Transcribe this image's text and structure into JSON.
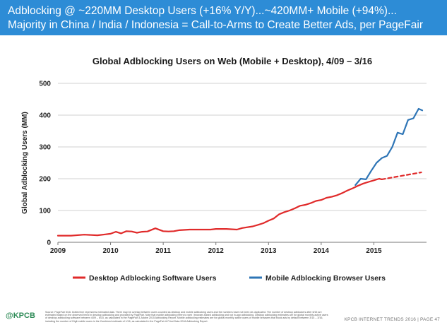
{
  "header": {
    "line1": "Adblocking @ ~220MM Desktop Users (+16% Y/Y)...~420MM+ Mobile (+94%)...",
    "line2": "Majority in China / India / Indonesia = Call-to-Arms to Create Better Ads, per PageFair"
  },
  "chart_data": {
    "type": "line",
    "title": "Global Adblocking Users on Web (Mobile + Desktop), 4/09 – 3/16",
    "xlabel": "",
    "ylabel": "Global Adblocking Users (MM)",
    "xlim": [
      2009,
      2016
    ],
    "ylim": [
      0,
      500
    ],
    "yticks": [
      0,
      100,
      200,
      300,
      400,
      500
    ],
    "xticks": [
      2009,
      2010,
      2011,
      2012,
      2013,
      2014,
      2015
    ],
    "grid": true,
    "legend_position": "bottom",
    "series": [
      {
        "name": "Desktop Adblocking Software Users",
        "color": "#e02a2a",
        "style": "solid",
        "x": [
          2009.0,
          2009.25,
          2009.5,
          2009.75,
          2009.9,
          2010.0,
          2010.1,
          2010.2,
          2010.3,
          2010.4,
          2010.5,
          2010.6,
          2010.7,
          2010.85,
          2011.0,
          2011.1,
          2011.2,
          2011.3,
          2011.5,
          2011.7,
          2011.9,
          2012.0,
          2012.2,
          2012.4,
          2012.5,
          2012.7,
          2012.8,
          2012.9,
          2013.0,
          2013.1,
          2013.2,
          2013.3,
          2013.4,
          2013.5,
          2013.6,
          2013.7,
          2013.8,
          2013.9,
          2014.0,
          2014.1,
          2014.2,
          2014.3,
          2014.4,
          2014.5,
          2014.6,
          2014.7,
          2014.8,
          2014.9,
          2015.0,
          2015.1,
          2015.15
        ],
        "values": [
          21,
          21,
          24,
          22,
          25,
          27,
          33,
          28,
          35,
          34,
          30,
          33,
          34,
          44,
          35,
          34,
          35,
          38,
          40,
          40,
          40,
          42,
          42,
          40,
          45,
          50,
          55,
          60,
          68,
          75,
          88,
          95,
          100,
          107,
          115,
          118,
          123,
          130,
          133,
          140,
          143,
          148,
          155,
          163,
          170,
          178,
          185,
          190,
          195,
          200,
          198
        ]
      },
      {
        "name": "Desktop Adblocking Software Users (projected)",
        "color": "#e02a2a",
        "style": "dashed",
        "legend": false,
        "x": [
          2015.15,
          2015.9
        ],
        "values": [
          198,
          220
        ]
      },
      {
        "name": "Mobile Adblocking Browser Users",
        "color": "#2e75b6",
        "style": "solid",
        "x": [
          2014.65,
          2014.75,
          2014.85,
          2014.95,
          2015.05,
          2015.15,
          2015.25,
          2015.35,
          2015.45,
          2015.55,
          2015.65,
          2015.75,
          2015.85,
          2015.92
        ],
        "values": [
          180,
          200,
          198,
          225,
          250,
          265,
          272,
          300,
          345,
          340,
          385,
          390,
          420,
          415
        ]
      }
    ]
  },
  "footer": {
    "note": "Source: PageFair 5/16. Dotted line represents estimated data. There may be overlap between users counted as desktop and mobile adblocking users and the numbers have not been de-duplicated. The number of desktop adblockers after 6/15 are estimated based on the observed trend in desktop adblocking and provided by PageFair. Note that mobile adblocking refers to web / browser-based adblocking and not in-app adblocking. Desktop adblocking estimates are for global monthly active users of desktop adblocking software between 4/09 – 6/15, as calculated in the PageFair & Adobe 2015 Adblocking Report. Mobile adblocking estimates are for global monthly active users of mobile browsers that block ads by default between 3/14 – 3/16, including the number of Digit mobile users in the Combined estimate of 1/16, as calculated in the PageFair & Priori Data 2016 Adblocking Report.",
    "brand": "@KPCB",
    "right": "KPCB INTERNET TRENDS 2016  |  PAGE 47"
  }
}
